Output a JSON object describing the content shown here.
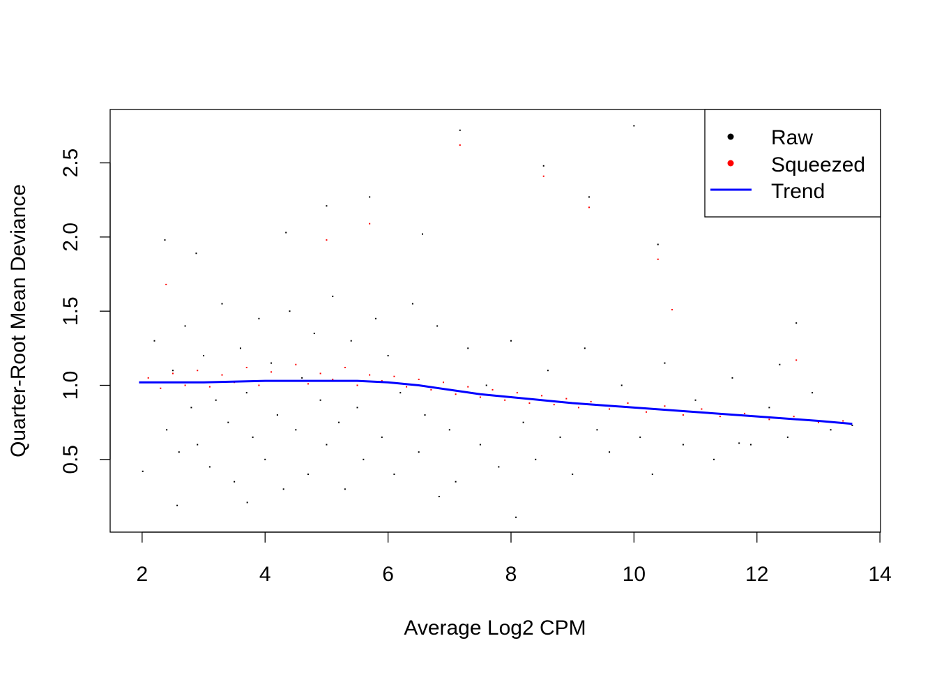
{
  "chart_data": {
    "type": "scatter",
    "title": "",
    "xlabel": "Average Log2 CPM",
    "ylabel": "Quarter-Root Mean Deviance",
    "xlim": [
      1.48,
      14.01
    ],
    "ylim": [
      0.01,
      2.86
    ],
    "xticks": [
      2,
      4,
      6,
      8,
      10,
      12,
      14
    ],
    "yticks": [
      0.5,
      1.0,
      1.5,
      2.0,
      2.5
    ],
    "ytick_labels": [
      "0.5",
      "1.0",
      "1.5",
      "2.0",
      "2.5"
    ],
    "grid": false,
    "legend_position": "top-right",
    "series": [
      {
        "name": "Raw",
        "kind": "points",
        "color": "#000000",
        "points": [
          [
            7.17,
            2.72
          ],
          [
            10.0,
            2.75
          ],
          [
            8.53,
            2.48
          ],
          [
            5.7,
            2.27
          ],
          [
            5.0,
            2.21
          ],
          [
            9.27,
            2.27
          ],
          [
            2.37,
            1.98
          ],
          [
            4.34,
            2.03
          ],
          [
            10.39,
            1.95
          ],
          [
            6.56,
            2.02
          ],
          [
            2.88,
            1.89
          ],
          [
            3.71,
            0.21
          ],
          [
            8.08,
            0.11
          ],
          [
            2.57,
            0.19
          ],
          [
            6.83,
            0.25
          ],
          [
            12.64,
            1.42
          ],
          [
            12.37,
            1.14
          ],
          [
            13.55,
            0.73
          ],
          [
            11.71,
            0.61
          ],
          [
            2.01,
            0.42
          ],
          [
            2.2,
            1.3
          ],
          [
            2.4,
            0.7
          ],
          [
            2.5,
            1.1
          ],
          [
            2.6,
            0.55
          ],
          [
            2.7,
            1.4
          ],
          [
            2.8,
            0.85
          ],
          [
            2.9,
            0.6
          ],
          [
            3.0,
            1.2
          ],
          [
            3.1,
            0.45
          ],
          [
            3.2,
            0.9
          ],
          [
            3.3,
            1.55
          ],
          [
            3.4,
            0.75
          ],
          [
            3.5,
            0.35
          ],
          [
            3.6,
            1.25
          ],
          [
            3.7,
            0.95
          ],
          [
            3.8,
            0.65
          ],
          [
            3.9,
            1.45
          ],
          [
            4.0,
            0.5
          ],
          [
            4.1,
            1.15
          ],
          [
            4.2,
            0.8
          ],
          [
            4.3,
            0.3
          ],
          [
            4.4,
            1.5
          ],
          [
            4.5,
            0.7
          ],
          [
            4.6,
            1.05
          ],
          [
            4.7,
            0.4
          ],
          [
            4.8,
            1.35
          ],
          [
            4.9,
            0.9
          ],
          [
            5.0,
            0.6
          ],
          [
            5.1,
            1.6
          ],
          [
            5.2,
            0.75
          ],
          [
            5.3,
            0.3
          ],
          [
            5.4,
            1.3
          ],
          [
            5.5,
            0.85
          ],
          [
            5.6,
            0.5
          ],
          [
            5.8,
            1.45
          ],
          [
            5.9,
            0.65
          ],
          [
            6.0,
            1.2
          ],
          [
            6.1,
            0.4
          ],
          [
            6.2,
            0.95
          ],
          [
            6.4,
            1.55
          ],
          [
            6.5,
            0.55
          ],
          [
            6.6,
            0.8
          ],
          [
            6.8,
            1.4
          ],
          [
            7.0,
            0.7
          ],
          [
            7.1,
            0.35
          ],
          [
            7.3,
            1.25
          ],
          [
            7.5,
            0.6
          ],
          [
            7.6,
            1.0
          ],
          [
            7.8,
            0.45
          ],
          [
            8.0,
            1.3
          ],
          [
            8.2,
            0.75
          ],
          [
            8.4,
            0.5
          ],
          [
            8.6,
            1.1
          ],
          [
            8.8,
            0.65
          ],
          [
            9.0,
            0.4
          ],
          [
            9.2,
            1.25
          ],
          [
            9.4,
            0.7
          ],
          [
            9.6,
            0.55
          ],
          [
            9.8,
            1.0
          ],
          [
            10.1,
            0.65
          ],
          [
            10.3,
            0.4
          ],
          [
            10.5,
            1.15
          ],
          [
            10.8,
            0.6
          ],
          [
            11.0,
            0.9
          ],
          [
            11.3,
            0.5
          ],
          [
            11.6,
            1.05
          ],
          [
            11.9,
            0.6
          ],
          [
            12.2,
            0.85
          ],
          [
            12.5,
            0.65
          ],
          [
            12.9,
            0.95
          ],
          [
            13.2,
            0.7
          ]
        ]
      },
      {
        "name": "Squeezed",
        "kind": "points",
        "color": "#ff0000",
        "points": [
          [
            7.17,
            2.62
          ],
          [
            8.53,
            2.41
          ],
          [
            5.7,
            2.09
          ],
          [
            9.27,
            2.2
          ],
          [
            10.39,
            1.85
          ],
          [
            5.0,
            1.98
          ],
          [
            10.62,
            1.51
          ],
          [
            12.64,
            1.17
          ],
          [
            2.39,
            1.68
          ],
          [
            2.1,
            1.05
          ],
          [
            2.3,
            0.98
          ],
          [
            2.5,
            1.08
          ],
          [
            2.7,
            1.0
          ],
          [
            2.9,
            1.1
          ],
          [
            3.1,
            0.99
          ],
          [
            3.3,
            1.07
          ],
          [
            3.5,
            1.02
          ],
          [
            3.7,
            1.12
          ],
          [
            3.9,
            1.0
          ],
          [
            4.1,
            1.09
          ],
          [
            4.3,
            1.03
          ],
          [
            4.5,
            1.14
          ],
          [
            4.7,
            1.01
          ],
          [
            4.9,
            1.08
          ],
          [
            5.1,
            1.04
          ],
          [
            5.3,
            1.12
          ],
          [
            5.5,
            1.0
          ],
          [
            5.7,
            1.07
          ],
          [
            5.9,
            1.03
          ],
          [
            6.1,
            1.06
          ],
          [
            6.3,
            0.99
          ],
          [
            6.5,
            1.04
          ],
          [
            6.7,
            0.97
          ],
          [
            6.9,
            1.02
          ],
          [
            7.1,
            0.94
          ],
          [
            7.3,
            0.99
          ],
          [
            7.5,
            0.92
          ],
          [
            7.7,
            0.97
          ],
          [
            7.9,
            0.9
          ],
          [
            8.1,
            0.95
          ],
          [
            8.3,
            0.88
          ],
          [
            8.5,
            0.93
          ],
          [
            8.7,
            0.87
          ],
          [
            8.9,
            0.91
          ],
          [
            9.1,
            0.85
          ],
          [
            9.3,
            0.89
          ],
          [
            9.6,
            0.84
          ],
          [
            9.9,
            0.88
          ],
          [
            10.2,
            0.82
          ],
          [
            10.5,
            0.86
          ],
          [
            10.8,
            0.8
          ],
          [
            11.1,
            0.84
          ],
          [
            11.4,
            0.79
          ],
          [
            11.8,
            0.81
          ],
          [
            12.2,
            0.77
          ],
          [
            12.6,
            0.79
          ],
          [
            13.0,
            0.75
          ],
          [
            13.4,
            0.76
          ]
        ]
      },
      {
        "name": "Trend",
        "kind": "line",
        "color": "#0000ff",
        "points": [
          [
            1.95,
            1.02
          ],
          [
            3,
            1.02
          ],
          [
            4,
            1.03
          ],
          [
            5,
            1.03
          ],
          [
            5.5,
            1.03
          ],
          [
            6,
            1.02
          ],
          [
            6.5,
            1.0
          ],
          [
            7,
            0.97
          ],
          [
            7.5,
            0.94
          ],
          [
            8,
            0.92
          ],
          [
            8.5,
            0.9
          ],
          [
            9,
            0.88
          ],
          [
            9.5,
            0.865
          ],
          [
            10,
            0.85
          ],
          [
            11,
            0.82
          ],
          [
            12,
            0.79
          ],
          [
            13,
            0.76
          ],
          [
            13.55,
            0.74
          ]
        ]
      }
    ]
  }
}
